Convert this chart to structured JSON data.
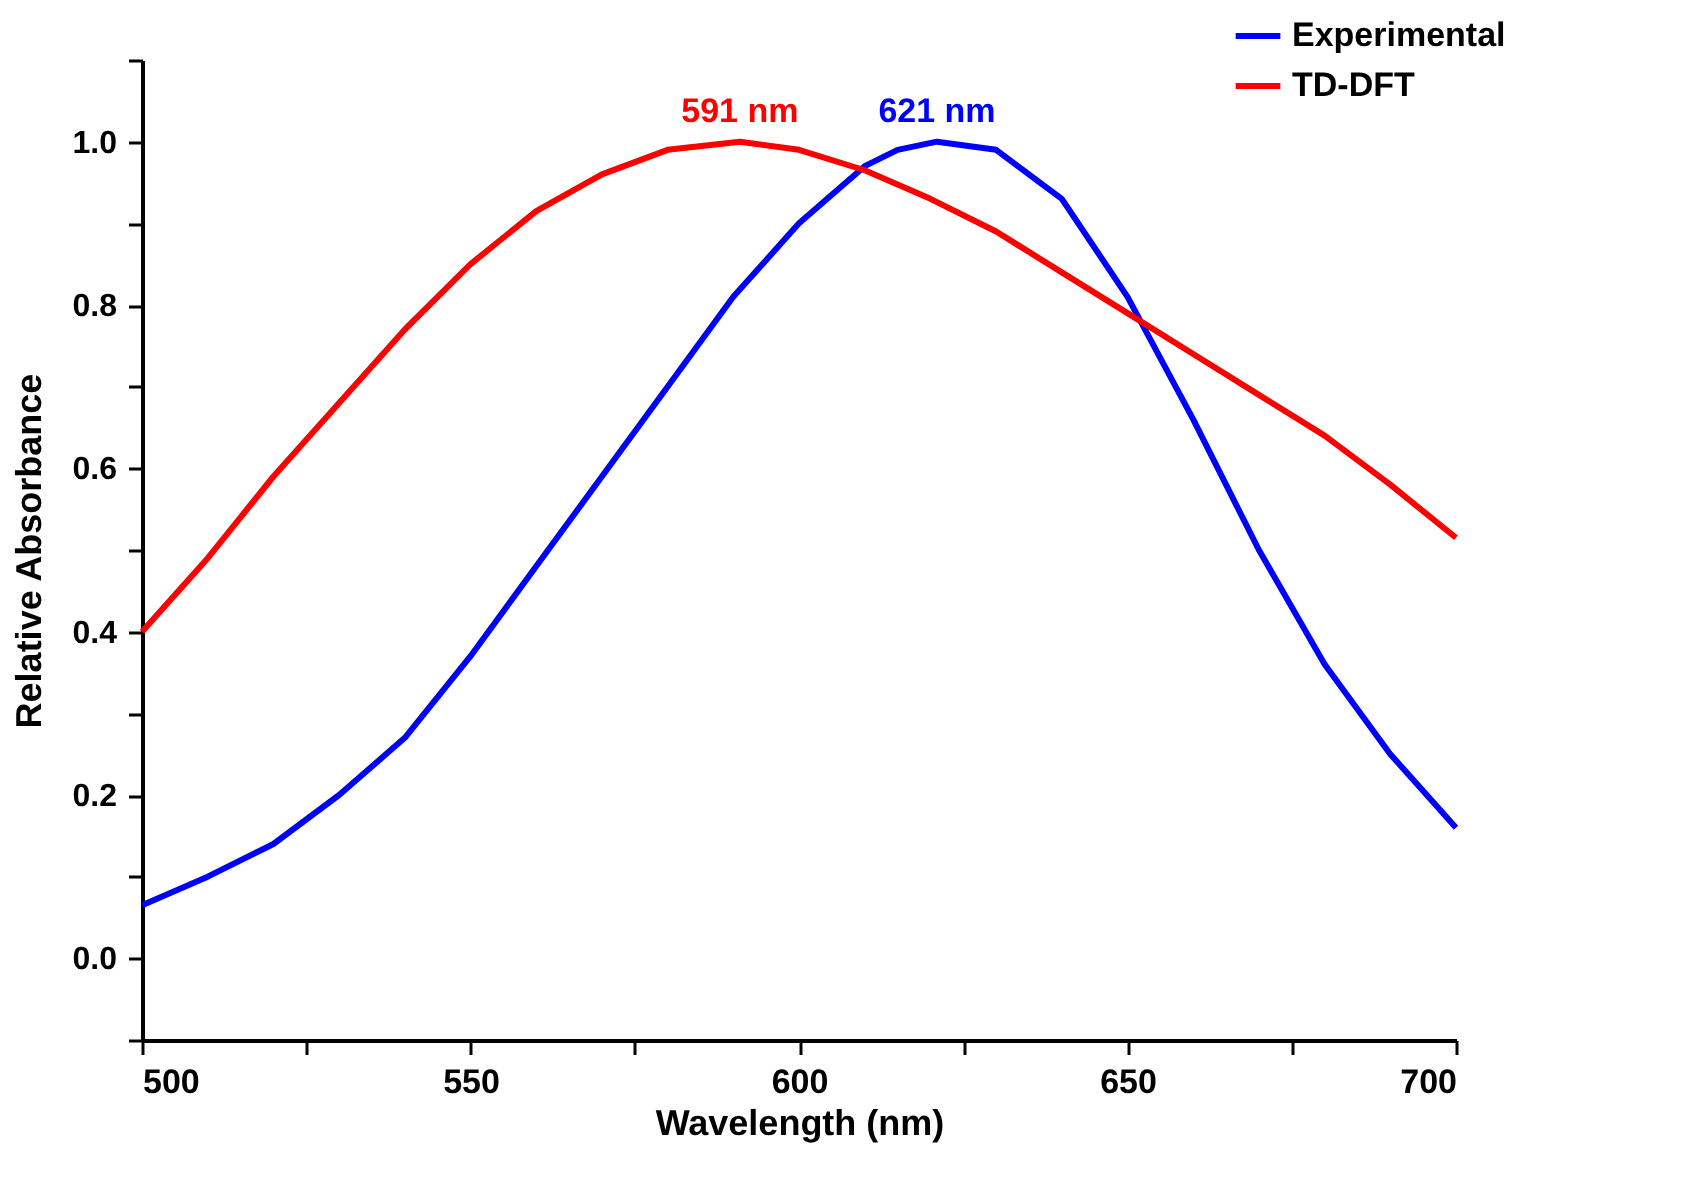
{
  "chart_data": {
    "type": "line",
    "xlabel": "Wavelength (nm)",
    "ylabel": "Relative Absorbance",
    "xlim": [
      500,
      700
    ],
    "ylim": [
      -0.1,
      1.1
    ],
    "xticks": [
      500,
      {
        "value": 525,
        "label": null
      },
      550,
      {
        "value": 575,
        "label": null
      },
      600,
      {
        "value": 625,
        "label": null
      },
      650,
      {
        "value": 675,
        "label": null
      },
      700
    ],
    "yticks": [
      {
        "value": -0.1,
        "label": null
      },
      {
        "value": 0,
        "label": "0.0"
      },
      {
        "value": 0.1,
        "label": null
      },
      0.2,
      {
        "value": 0.3,
        "label": null
      },
      0.4,
      {
        "value": 0.5,
        "label": null
      },
      0.6,
      {
        "value": 0.7,
        "label": null
      },
      0.8,
      {
        "value": 0.9,
        "label": null
      },
      {
        "value": 1.0,
        "label": "1.0"
      },
      {
        "value": 1.1,
        "label": null
      }
    ],
    "grid": false,
    "legend": "top right",
    "marker": "none",
    "line_style": "solid",
    "series": [
      {
        "name": "Experimental",
        "color": "#0000ff",
        "x": [
          500,
          510,
          520,
          530,
          540,
          550,
          560,
          570,
          580,
          590,
          600,
          610,
          615,
          621,
          630,
          640,
          650,
          660,
          670,
          680,
          690,
          700
        ],
        "values": [
          0.065,
          0.1,
          0.14,
          0.2,
          0.27,
          0.37,
          0.48,
          0.59,
          0.7,
          0.81,
          0.9,
          0.97,
          0.99,
          1.0,
          0.99,
          0.93,
          0.81,
          0.66,
          0.5,
          0.36,
          0.25,
          0.16
        ]
      },
      {
        "name": "TD-DFT",
        "color": "#ff0000",
        "x": [
          500,
          510,
          520,
          530,
          540,
          550,
          560,
          570,
          580,
          591,
          600,
          610,
          620,
          630,
          640,
          650,
          660,
          670,
          680,
          690,
          700
        ],
        "values": [
          0.4,
          0.49,
          0.59,
          0.68,
          0.77,
          0.85,
          0.915,
          0.96,
          0.99,
          1.0,
          0.99,
          0.965,
          0.93,
          0.89,
          0.84,
          0.79,
          0.74,
          0.69,
          0.64,
          0.58,
          0.515
        ]
      }
    ],
    "annotations": [
      {
        "text": "621 nm",
        "x": 621,
        "y": 1.0
      },
      {
        "text": "591 nm",
        "x": 591,
        "y": 1.0
      }
    ]
  }
}
